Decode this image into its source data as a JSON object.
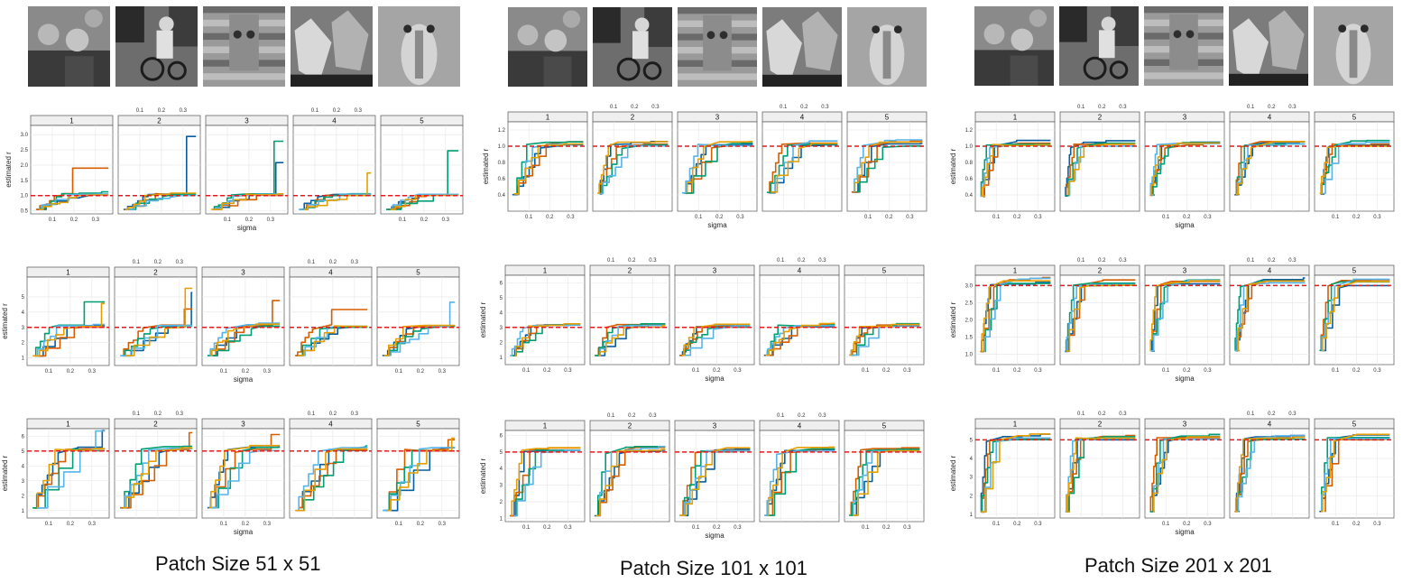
{
  "captions": [
    "Patch Size 51 x 51",
    "Patch Size 101 x 101",
    "Patch Size 201 x 201"
  ],
  "thumbnails": [
    {
      "name": "two-people-photo-icon"
    },
    {
      "name": "man-on-motorcycle-photo-icon"
    },
    {
      "name": "stone-carving-photo-icon"
    },
    {
      "name": "two-foxes-photo-icon"
    },
    {
      "name": "mandrill-photo-icon"
    }
  ],
  "colors": {
    "ref": "#e41a1c",
    "series": [
      "#0b5e9e",
      "#d55e00",
      "#009e73",
      "#56b4e9",
      "#e69f00"
    ]
  },
  "chart_data": [
    {
      "type": "line",
      "group": "Patch Size 51 x 51",
      "true_r": 1,
      "xlabel": "sigma",
      "ylabel": "estimated r",
      "xticks": [
        0.1,
        0.2,
        0.3
      ],
      "yticks": [
        0.5,
        1.0,
        1.5,
        2.0,
        2.5,
        3.0
      ],
      "ylim": [
        0.4,
        3.3
      ],
      "panels": [
        "1",
        "2",
        "3",
        "4",
        "5"
      ],
      "estimates_shown": "stepwise lines of estimated r versus sigma, one per series"
    },
    {
      "type": "line",
      "group": "Patch Size 51 x 51",
      "true_r": 3,
      "xlabel": "sigma",
      "ylabel": "estimated r",
      "xticks": [
        0.1,
        0.2,
        0.3
      ],
      "yticks": [
        1,
        2,
        3,
        4,
        5
      ],
      "ylim": [
        0.5,
        6.3
      ],
      "panels": [
        "1",
        "2",
        "3",
        "4",
        "5"
      ]
    },
    {
      "type": "line",
      "group": "Patch Size 51 x 51",
      "true_r": 5,
      "xlabel": "sigma",
      "ylabel": "estimated r",
      "xticks": [
        0.1,
        0.2,
        0.3
      ],
      "yticks": [
        1,
        2,
        3,
        4,
        5,
        6
      ],
      "ylim": [
        0.5,
        6.5
      ],
      "panels": [
        "1",
        "2",
        "3",
        "4",
        "5"
      ]
    },
    {
      "type": "line",
      "group": "Patch Size 101 x 101",
      "true_r": 1,
      "xlabel": "sigma",
      "ylabel": "estimated r",
      "xticks": [
        0.1,
        0.2,
        0.3
      ],
      "yticks": [
        0.4,
        0.6,
        0.8,
        1.0,
        1.2
      ],
      "ylim": [
        0.2,
        1.3
      ],
      "panels": [
        "1",
        "2",
        "3",
        "4",
        "5"
      ]
    },
    {
      "type": "line",
      "group": "Patch Size 101 x 101",
      "true_r": 3,
      "xlabel": "sigma",
      "ylabel": "estimated r",
      "xticks": [
        0.1,
        0.2,
        0.3
      ],
      "yticks": [
        1,
        2,
        3,
        4,
        5,
        6
      ],
      "ylim": [
        0.5,
        6.5
      ],
      "panels": [
        "1",
        "2",
        "3",
        "4",
        "5"
      ]
    },
    {
      "type": "line",
      "group": "Patch Size 101 x 101",
      "true_r": 5,
      "xlabel": "sigma",
      "ylabel": "estimated r",
      "xticks": [
        0.1,
        0.2,
        0.3
      ],
      "yticks": [
        1,
        2,
        3,
        4,
        5,
        6
      ],
      "ylim": [
        0.8,
        6.3
      ],
      "panels": [
        "1",
        "2",
        "3",
        "4",
        "5"
      ]
    },
    {
      "type": "line",
      "group": "Patch Size 201 x 201",
      "true_r": 1,
      "xlabel": "sigma",
      "ylabel": "estimated r",
      "xticks": [
        0.1,
        0.2,
        0.3
      ],
      "yticks": [
        0.4,
        0.6,
        0.8,
        1.0,
        1.2
      ],
      "ylim": [
        0.2,
        1.3
      ],
      "panels": [
        "1",
        "2",
        "3",
        "4",
        "5"
      ]
    },
    {
      "type": "line",
      "group": "Patch Size 201 x 201",
      "true_r": 3,
      "xlabel": "sigma",
      "ylabel": "estimated r",
      "xticks": [
        0.1,
        0.2,
        0.3
      ],
      "yticks": [
        1.0,
        1.5,
        2.0,
        2.5,
        3.0
      ],
      "ylim": [
        0.7,
        3.3
      ],
      "panels": [
        "1",
        "2",
        "3",
        "4",
        "5"
      ]
    },
    {
      "type": "line",
      "group": "Patch Size 201 x 201",
      "true_r": 5,
      "xlabel": "sigma",
      "ylabel": "estimated r",
      "xticks": [
        0.1,
        0.2,
        0.3
      ],
      "yticks": [
        1,
        2,
        3,
        4,
        5
      ],
      "ylim": [
        0.8,
        5.6
      ],
      "panels": [
        "1",
        "2",
        "3",
        "4",
        "5"
      ]
    }
  ]
}
